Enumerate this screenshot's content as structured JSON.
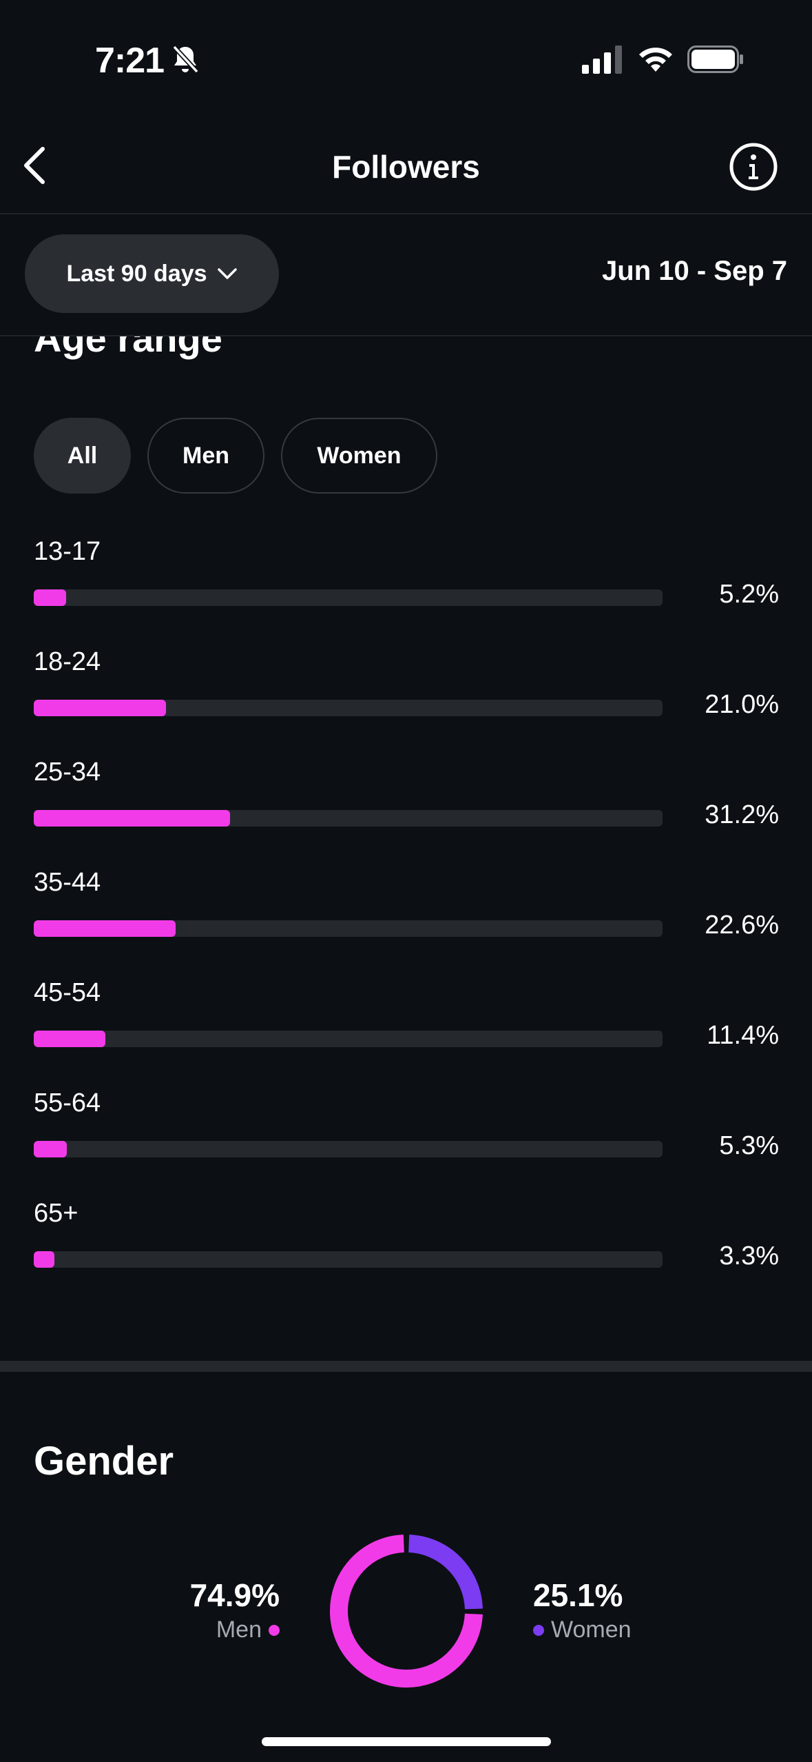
{
  "status_bar": {
    "time": "7:21"
  },
  "nav": {
    "title": "Followers"
  },
  "filter": {
    "range_label": "Last 90 days",
    "date_range": "Jun 10 - Sep 7"
  },
  "age_section": {
    "title": "Age range",
    "chips": [
      "All",
      "Men",
      "Women"
    ],
    "selected_chip": "All",
    "rows": [
      {
        "label": "13-17",
        "percent_text": "5.2%",
        "value": 5.2
      },
      {
        "label": "18-24",
        "percent_text": "21.0%",
        "value": 21.0
      },
      {
        "label": "25-34",
        "percent_text": "31.2%",
        "value": 31.2
      },
      {
        "label": "35-44",
        "percent_text": "22.6%",
        "value": 22.6
      },
      {
        "label": "45-54",
        "percent_text": "11.4%",
        "value": 11.4
      },
      {
        "label": "55-64",
        "percent_text": "5.3%",
        "value": 5.3
      },
      {
        "label": "65+",
        "percent_text": "3.3%",
        "value": 3.3
      }
    ]
  },
  "gender_section": {
    "title": "Gender",
    "men": {
      "percent_text": "74.9%",
      "label": "Men",
      "value": 74.9
    },
    "women": {
      "percent_text": "25.1%",
      "label": "Women",
      "value": 25.1
    }
  },
  "colors": {
    "accent_magenta": "#f23be8",
    "accent_purple": "#7b3cf2",
    "background": "#0c1014",
    "track": "#25292e"
  },
  "icons": {
    "status": [
      "bell-off-icon",
      "signal-icon",
      "wifi-icon",
      "battery-icon"
    ],
    "nav": [
      "back-arrow-icon",
      "info-icon"
    ],
    "filter": [
      "chevron-down-icon"
    ]
  }
}
